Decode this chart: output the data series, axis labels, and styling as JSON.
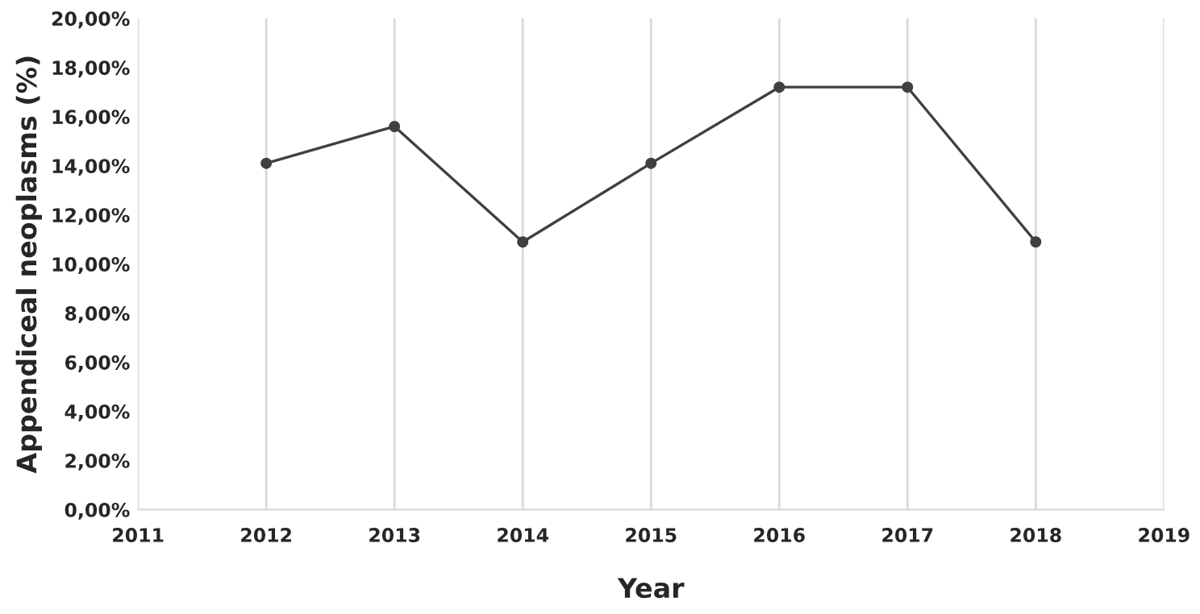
{
  "chart_data": {
    "type": "line",
    "xlabel": "Year",
    "ylabel": "Appendiceal neoplasms (%)",
    "x": [
      2012,
      2013,
      2014,
      2015,
      2016,
      2017,
      2018
    ],
    "series": [
      {
        "color": "#404040",
        "values": [
          14.1,
          15.6,
          10.9,
          14.1,
          17.2,
          17.2,
          10.9
        ]
      }
    ],
    "xlim": [
      2011,
      2019
    ],
    "xticks": [
      2011,
      2012,
      2013,
      2014,
      2015,
      2016,
      2017,
      2018,
      2019
    ],
    "ylim": [
      0,
      20
    ],
    "yticks": [
      {
        "value": 0,
        "label": "0,00%"
      },
      {
        "value": 2,
        "label": "2,00%"
      },
      {
        "value": 4,
        "label": "4,00%"
      },
      {
        "value": 6,
        "label": "6,00%"
      },
      {
        "value": 8,
        "label": "8,00%"
      },
      {
        "value": 10,
        "label": "10,00%"
      },
      {
        "value": 12,
        "label": "12,00%"
      },
      {
        "value": 14,
        "label": "14,00%"
      },
      {
        "value": 16,
        "label": "16,00%"
      },
      {
        "value": 18,
        "label": "18,00%"
      },
      {
        "value": 20,
        "label": "20,00%"
      }
    ],
    "grid": "x",
    "marker": "circle",
    "line_style": "solid",
    "legend": false
  }
}
